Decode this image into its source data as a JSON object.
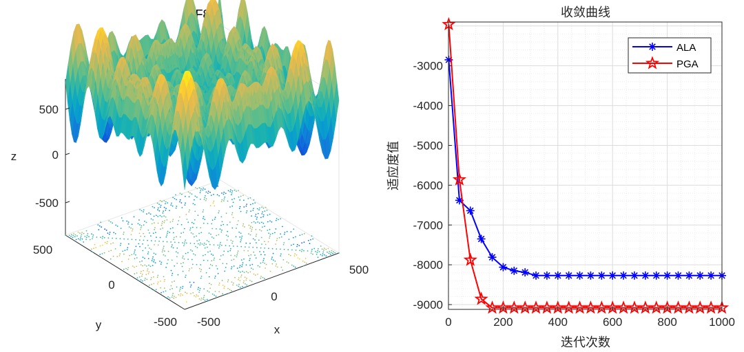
{
  "chart_data": [
    {
      "type": "surface3d",
      "title": "F8",
      "xlabel": "x",
      "ylabel": "y",
      "zlabel": "z",
      "xticks": [
        "-500",
        "0",
        "500"
      ],
      "yticks": [
        "-500",
        "0",
        "500"
      ],
      "zticks": [
        "-500",
        "0",
        "500"
      ],
      "xlim": [
        -500,
        500
      ],
      "ylim": [
        -500,
        500
      ],
      "zlim": [
        -850,
        850
      ],
      "colormap": "parula",
      "has_contour": true,
      "grid": true
    },
    {
      "type": "line",
      "title": "收敛曲线",
      "xlabel": "迭代次数",
      "ylabel": "适应度值",
      "xlim": [
        0,
        1000
      ],
      "ylim": [
        -9120,
        -1900
      ],
      "xticks": [
        "0",
        "200",
        "400",
        "600",
        "800",
        "1000"
      ],
      "yticks": [
        "-3000",
        "-4000",
        "-5000",
        "-6000",
        "-7000",
        "-8000",
        "-9000"
      ],
      "grid": true,
      "legend_position": "top-right",
      "x": [
        1,
        40,
        80,
        120,
        160,
        200,
        240,
        280,
        320,
        360,
        400,
        440,
        480,
        520,
        560,
        600,
        640,
        680,
        720,
        760,
        800,
        840,
        880,
        920,
        960,
        1000
      ],
      "series": [
        {
          "name": "ALA",
          "color": "#0000ff",
          "marker": "asterisk",
          "values": [
            -2850,
            -6380,
            -6640,
            -7350,
            -7810,
            -8060,
            -8150,
            -8190,
            -8270,
            -8270,
            -8270,
            -8270,
            -8270,
            -8270,
            -8270,
            -8270,
            -8270,
            -8270,
            -8270,
            -8270,
            -8270,
            -8270,
            -8270,
            -8270,
            -8270,
            -8270
          ]
        },
        {
          "name": "PGA",
          "color": "#ff0000",
          "marker": "pentagram",
          "values": [
            -1960,
            -5860,
            -7880,
            -8860,
            -9080,
            -9080,
            -9080,
            -9080,
            -9080,
            -9080,
            -9080,
            -9080,
            -9080,
            -9080,
            -9080,
            -9080,
            -9080,
            -9080,
            -9080,
            -9080,
            -9080,
            -9080,
            -9080,
            -9080,
            -9080,
            -9080
          ]
        }
      ]
    }
  ]
}
